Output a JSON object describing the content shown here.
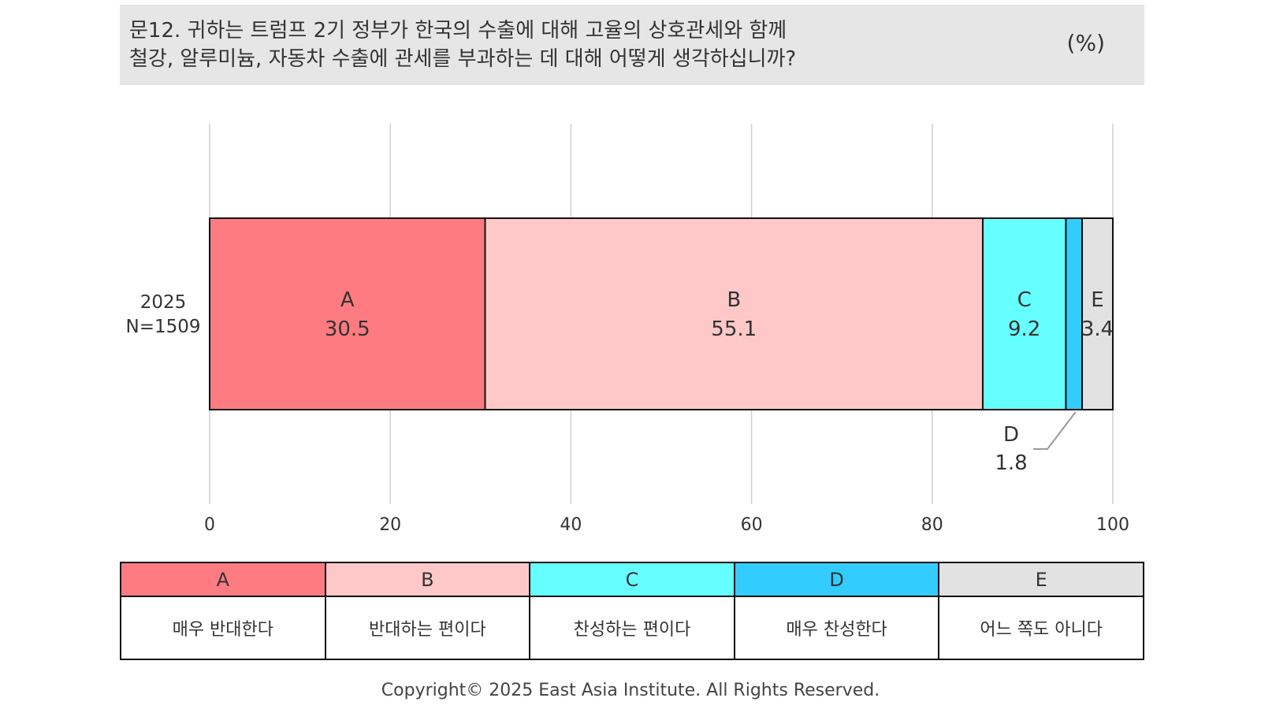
{
  "header": {
    "question_line1": "문12. 귀하는 트럼프 2기 정부가 한국의 수출에 대해 고율의 상호관세와 함께",
    "question_line2": "철강, 알루미늄, 자동차 수출에 관세를 부과하는 데 대해 어떻게 생각하십니까?",
    "unit": "(%)"
  },
  "chart_data": {
    "type": "bar",
    "orientation": "horizontal",
    "stacked": true,
    "categories": [
      "2025"
    ],
    "category_sublabels": [
      "N=1509"
    ],
    "xlim": [
      0,
      100
    ],
    "xticks": [
      0,
      20,
      40,
      60,
      80,
      100
    ],
    "grid": true,
    "series": [
      {
        "name": "A",
        "values": [
          30.5
        ],
        "color": "#ff7b82"
      },
      {
        "name": "B",
        "values": [
          55.1
        ],
        "color": "#ffc8c8"
      },
      {
        "name": "C",
        "values": [
          9.2
        ],
        "color": "#66ffff"
      },
      {
        "name": "D",
        "values": [
          1.8
        ],
        "color": "#33ccff"
      },
      {
        "name": "E",
        "values": [
          3.4
        ],
        "color": "#e2e2e2"
      }
    ]
  },
  "legend": {
    "items": [
      {
        "key": "A",
        "label": "매우 반대한다",
        "color": "#ff7b82"
      },
      {
        "key": "B",
        "label": "반대하는 편이다",
        "color": "#ffc8c8"
      },
      {
        "key": "C",
        "label": "찬성하는 편이다",
        "color": "#66ffff"
      },
      {
        "key": "D",
        "label": "매우 찬성한다",
        "color": "#33ccff"
      },
      {
        "key": "E",
        "label": "어느 쪽도 아니다",
        "color": "#e2e2e2"
      }
    ]
  },
  "footer": {
    "copyright": "Copyright© 2025 East Asia Institute. All Rights Reserved."
  }
}
